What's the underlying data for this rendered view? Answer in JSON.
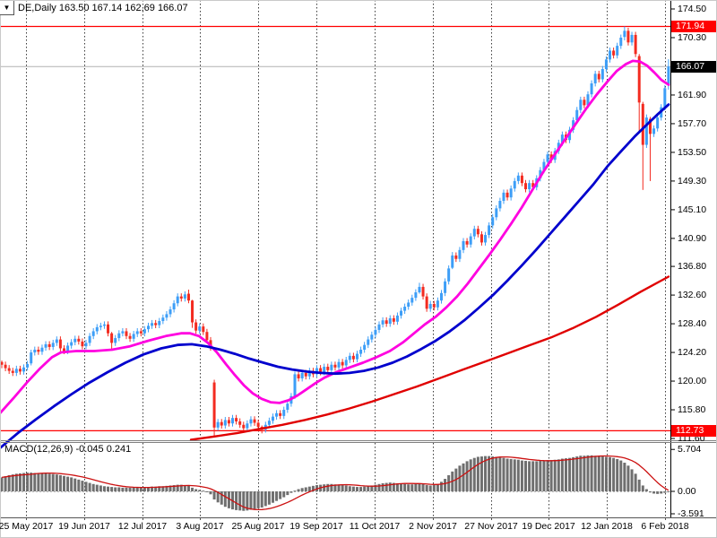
{
  "header": {
    "title": "DE,Daily 163.50 167.14 162.69 166.07"
  },
  "icons": {
    "collapse": "▼"
  },
  "badges": {
    "resistance": "171.94",
    "current": "166.07",
    "support": "112.73"
  },
  "price_axis": {
    "labels": [
      "174.50",
      "170.30",
      "161.90",
      "157.70",
      "153.50",
      "149.30",
      "145.10",
      "140.90",
      "136.80",
      "132.60",
      "128.40",
      "124.20",
      "120.00",
      "115.80",
      "111.60"
    ]
  },
  "time_axis": {
    "labels": [
      "25 May 2017",
      "19 Jun 2017",
      "12 Jul 2017",
      "3 Aug 2017",
      "25 Aug 2017",
      "19 Sep 2017",
      "11 Oct 2017",
      "2 Nov 2017",
      "27 Nov 2017",
      "19 Dec 2017",
      "12 Jan 2018",
      "6 Feb 2018"
    ]
  },
  "macd_panel": {
    "label": "MACD(12,26,9) -0.045 0.241",
    "axis_labels": [
      "5.704",
      "0.00",
      "-3.591"
    ],
    "axis_values": [
      5.704,
      0.0,
      -3.591
    ]
  },
  "colors": {
    "bull": "#3d9ef7",
    "bear": "#f32b20",
    "ma_fast": "#ff00e0",
    "ma_mid": "#0000cd",
    "ma_slow": "#e00000",
    "hline": "#ff0000",
    "price_line": "#b2b2b2",
    "badge_red": "#ff0000",
    "badge_black": "#000000",
    "grid": "#3a3a3a",
    "macd_hist": "#6f6f6f",
    "macd_signal": "#cc1111",
    "border": "#808080",
    "bg": "#ffffff"
  },
  "chart_data": {
    "type": "candlestick",
    "symbol": "DE",
    "timeframe": "Daily",
    "ohlc_last": {
      "open": 163.5,
      "high": 167.14,
      "low": 162.69,
      "close": 166.07
    },
    "ylim": [
      111.6,
      174.5
    ],
    "horizontal_lines": [
      171.94,
      112.73
    ],
    "current_price": 166.07,
    "candles": {
      "count": 183,
      "closes": [
        122.4,
        121.9,
        121.5,
        121.2,
        121.8,
        121.4,
        122.0,
        122.5,
        124.2,
        124.6,
        124.3,
        124.9,
        125.4,
        125.0,
        125.6,
        126.1,
        124.8,
        124.4,
        125.2,
        125.7,
        126.2,
        125.8,
        125.1,
        125.6,
        126.6,
        127.3,
        127.9,
        128.1,
        128.3,
        127.0,
        125.6,
        126.3,
        127.0,
        127.3,
        126.6,
        126.2,
        126.9,
        127.3,
        127.0,
        127.6,
        128.1,
        128.5,
        128.2,
        128.8,
        129.3,
        129.8,
        130.5,
        131.4,
        132.4,
        132.1,
        132.7,
        131.8,
        128.6,
        127.4,
        128.0,
        127.2,
        126.0,
        124.9,
        113.2,
        114.0,
        113.5,
        114.3,
        113.8,
        114.6,
        114.1,
        113.6,
        113.1,
        113.8,
        114.4,
        113.9,
        113.3,
        112.9,
        113.6,
        114.2,
        114.8,
        115.3,
        114.9,
        115.8,
        116.7,
        117.8,
        121.0,
        120.4,
        121.2,
        120.7,
        121.5,
        121.0,
        121.9,
        121.3,
        122.1,
        121.6,
        122.4,
        122.0,
        122.8,
        122.3,
        123.1,
        123.7,
        123.2,
        124.0,
        124.6,
        125.3,
        126.1,
        126.8,
        127.5,
        128.3,
        128.9,
        128.4,
        129.2,
        128.7,
        129.6,
        130.3,
        130.9,
        131.5,
        132.2,
        133.0,
        133.8,
        132.4,
        130.6,
        131.3,
        130.8,
        131.8,
        132.9,
        134.6,
        136.5,
        138.4,
        137.9,
        139.2,
        140.5,
        140.0,
        141.2,
        142.3,
        141.5,
        140.3,
        141.4,
        142.8,
        144.0,
        145.3,
        146.4,
        147.6,
        146.9,
        148.2,
        149.3,
        150.1,
        149.0,
        148.1,
        149.0,
        148.4,
        149.7,
        150.9,
        152.1,
        153.2,
        152.4,
        153.7,
        154.9,
        156.1,
        155.3,
        156.8,
        158.2,
        159.7,
        161.2,
        160.4,
        162.0,
        163.6,
        165.0,
        164.2,
        165.7,
        167.1,
        168.4,
        167.7,
        169.1,
        170.3,
        171.3,
        169.6,
        170.7,
        167.9,
        160.8,
        154.6,
        158.6,
        156.2,
        157.0,
        158.6,
        160.1,
        162.9,
        166.07
      ],
      "special_ohlc": {
        "0": [
          122.8,
          123.0,
          121.9,
          122.4
        ],
        "8": [
          122.6,
          124.6,
          122.3,
          124.2
        ],
        "30": [
          127.0,
          127.2,
          124.6,
          125.6
        ],
        "51": [
          132.8,
          133.4,
          131.4,
          131.8
        ],
        "52": [
          131.8,
          131.9,
          127.8,
          128.6
        ],
        "58": [
          119.8,
          120.2,
          111.9,
          113.2
        ],
        "71": [
          113.3,
          113.5,
          112.35,
          112.9
        ],
        "80": [
          117.7,
          121.4,
          117.4,
          121.0
        ],
        "114": [
          133.0,
          134.4,
          132.8,
          133.8
        ],
        "123": [
          136.6,
          138.9,
          136.4,
          138.4
        ],
        "170": [
          170.4,
          171.94,
          169.9,
          171.3
        ],
        "174": [
          167.6,
          167.9,
          156.6,
          160.8
        ],
        "175": [
          160.6,
          160.9,
          148.0,
          154.6
        ],
        "177": [
          158.4,
          158.7,
          149.3,
          156.2
        ],
        "182": [
          163.5,
          167.14,
          162.69,
          166.07
        ]
      }
    },
    "moving_averages": [
      {
        "name": "fast-ma",
        "color_key": "ma_fast",
        "width": 2.8,
        "points": [
          [
            0,
            115.3
          ],
          [
            15,
            117.5
          ],
          [
            30,
            119.8
          ],
          [
            45,
            121.9
          ],
          [
            58,
            123.5
          ],
          [
            68,
            124.2
          ],
          [
            85,
            124.4
          ],
          [
            105,
            124.4
          ],
          [
            125,
            124.6
          ],
          [
            145,
            125.1
          ],
          [
            165,
            125.9
          ],
          [
            185,
            126.6
          ],
          [
            202,
            127.0
          ],
          [
            212,
            127.0
          ],
          [
            222,
            126.6
          ],
          [
            232,
            125.6
          ],
          [
            242,
            124.2
          ],
          [
            252,
            122.5
          ],
          [
            262,
            120.9
          ],
          [
            272,
            119.4
          ],
          [
            282,
            118.2
          ],
          [
            292,
            117.4
          ],
          [
            302,
            116.9
          ],
          [
            312,
            116.8
          ],
          [
            322,
            117.2
          ],
          [
            332,
            117.9
          ],
          [
            342,
            118.8
          ],
          [
            352,
            119.7
          ],
          [
            362,
            120.5
          ],
          [
            375,
            121.3
          ],
          [
            390,
            122.0
          ],
          [
            405,
            122.7
          ],
          [
            420,
            123.5
          ],
          [
            435,
            124.4
          ],
          [
            450,
            125.7
          ],
          [
            462,
            127.0
          ],
          [
            474,
            128.3
          ],
          [
            486,
            129.4
          ],
          [
            498,
            130.8
          ],
          [
            510,
            132.4
          ],
          [
            522,
            134.3
          ],
          [
            534,
            136.4
          ],
          [
            546,
            138.5
          ],
          [
            558,
            140.7
          ],
          [
            570,
            143.0
          ],
          [
            582,
            145.4
          ],
          [
            594,
            148.0
          ],
          [
            606,
            150.6
          ],
          [
            618,
            153.0
          ],
          [
            630,
            155.3
          ],
          [
            642,
            157.6
          ],
          [
            654,
            159.9
          ],
          [
            666,
            162.0
          ],
          [
            678,
            163.9
          ],
          [
            688,
            165.4
          ],
          [
            698,
            166.4
          ],
          [
            706,
            166.9
          ],
          [
            714,
            166.8
          ],
          [
            722,
            166.2
          ],
          [
            730,
            165.2
          ],
          [
            738,
            164.1
          ],
          [
            746,
            163.4
          ]
        ]
      },
      {
        "name": "mid-ma",
        "color_key": "ma_mid",
        "width": 2.8,
        "points": [
          [
            0,
            110.2
          ],
          [
            20,
            112.4
          ],
          [
            40,
            114.4
          ],
          [
            60,
            116.3
          ],
          [
            80,
            118.1
          ],
          [
            100,
            119.8
          ],
          [
            120,
            121.3
          ],
          [
            140,
            122.7
          ],
          [
            160,
            123.9
          ],
          [
            180,
            124.8
          ],
          [
            198,
            125.3
          ],
          [
            214,
            125.4
          ],
          [
            230,
            125.1
          ],
          [
            246,
            124.6
          ],
          [
            262,
            124.0
          ],
          [
            278,
            123.3
          ],
          [
            294,
            122.7
          ],
          [
            310,
            122.1
          ],
          [
            326,
            121.7
          ],
          [
            342,
            121.4
          ],
          [
            358,
            121.2
          ],
          [
            374,
            121.1
          ],
          [
            390,
            121.2
          ],
          [
            406,
            121.5
          ],
          [
            422,
            122.0
          ],
          [
            438,
            122.7
          ],
          [
            454,
            123.6
          ],
          [
            470,
            124.7
          ],
          [
            486,
            125.9
          ],
          [
            502,
            127.3
          ],
          [
            518,
            128.9
          ],
          [
            534,
            130.7
          ],
          [
            550,
            132.6
          ],
          [
            566,
            134.7
          ],
          [
            582,
            136.9
          ],
          [
            598,
            139.2
          ],
          [
            614,
            141.6
          ],
          [
            630,
            144.0
          ],
          [
            646,
            146.4
          ],
          [
            662,
            148.8
          ],
          [
            678,
            151.5
          ],
          [
            694,
            153.8
          ],
          [
            708,
            155.8
          ],
          [
            722,
            157.6
          ],
          [
            734,
            159.1
          ],
          [
            746,
            160.5
          ]
        ]
      },
      {
        "name": "slow-ma",
        "color_key": "ma_slow",
        "width": 2.4,
        "points": [
          [
            213,
            111.4
          ],
          [
            240,
            111.9
          ],
          [
            265,
            112.4
          ],
          [
            290,
            113.0
          ],
          [
            315,
            113.6
          ],
          [
            340,
            114.3
          ],
          [
            365,
            115.1
          ],
          [
            390,
            116.0
          ],
          [
            415,
            117.0
          ],
          [
            440,
            118.1
          ],
          [
            465,
            119.2
          ],
          [
            490,
            120.4
          ],
          [
            515,
            121.6
          ],
          [
            540,
            122.8
          ],
          [
            565,
            124.0
          ],
          [
            590,
            125.2
          ],
          [
            615,
            126.4
          ],
          [
            640,
            127.8
          ],
          [
            665,
            129.4
          ],
          [
            690,
            131.2
          ],
          [
            715,
            133.1
          ],
          [
            746,
            135.3
          ]
        ]
      }
    ],
    "macd": {
      "params": [
        12,
        26,
        9
      ],
      "last_macd": -0.045,
      "last_signal": 0.241,
      "histogram": [
        1.9,
        2.05,
        2.2,
        2.3,
        2.4,
        2.45,
        2.5,
        2.55,
        2.55,
        2.5,
        2.5,
        2.45,
        2.45,
        2.4,
        2.35,
        2.3,
        2.2,
        2.1,
        2.0,
        1.9,
        1.75,
        1.6,
        1.45,
        1.3,
        1.15,
        1.0,
        0.9,
        0.8,
        0.7,
        0.65,
        0.6,
        0.55,
        0.55,
        0.5,
        0.5,
        0.5,
        0.5,
        0.55,
        0.55,
        0.6,
        0.6,
        0.65,
        0.65,
        0.7,
        0.7,
        0.75,
        0.8,
        0.85,
        0.9,
        0.9,
        0.85,
        0.8,
        0.5,
        0.3,
        0.2,
        0.1,
        -0.1,
        -0.4,
        -1.1,
        -1.5,
        -1.8,
        -2.1,
        -2.3,
        -2.45,
        -2.55,
        -2.6,
        -2.65,
        -2.6,
        -2.5,
        -2.4,
        -2.3,
        -2.2,
        -2.0,
        -1.8,
        -1.55,
        -1.3,
        -1.05,
        -0.8,
        -0.5,
        -0.2,
        0.1,
        0.3,
        0.45,
        0.55,
        0.65,
        0.75,
        0.85,
        0.9,
        0.95,
        1.0,
        1.0,
        0.95,
        0.9,
        0.85,
        0.8,
        0.7,
        0.65,
        0.6,
        0.6,
        0.65,
        0.7,
        0.8,
        0.9,
        1.0,
        1.1,
        1.15,
        1.2,
        1.15,
        1.1,
        1.05,
        1.0,
        0.95,
        0.95,
        1.0,
        1.1,
        1.0,
        0.85,
        0.8,
        0.85,
        1.0,
        1.3,
        1.7,
        2.2,
        2.7,
        3.1,
        3.5,
        3.8,
        4.1,
        4.35,
        4.55,
        4.7,
        4.75,
        4.8,
        4.8,
        4.75,
        4.7,
        4.6,
        4.55,
        4.45,
        4.4,
        4.35,
        4.3,
        4.2,
        4.15,
        4.1,
        4.1,
        4.1,
        4.15,
        4.2,
        4.25,
        4.25,
        4.3,
        4.35,
        4.45,
        4.5,
        4.55,
        4.65,
        4.75,
        4.85,
        4.85,
        4.9,
        4.9,
        4.85,
        4.8,
        4.75,
        4.7,
        4.65,
        4.55,
        4.4,
        4.2,
        3.9,
        3.5,
        3.0,
        2.4,
        1.6,
        0.8,
        0.3,
        -0.15,
        -0.3,
        -0.35,
        -0.3,
        -0.2,
        -0.045
      ]
    }
  }
}
